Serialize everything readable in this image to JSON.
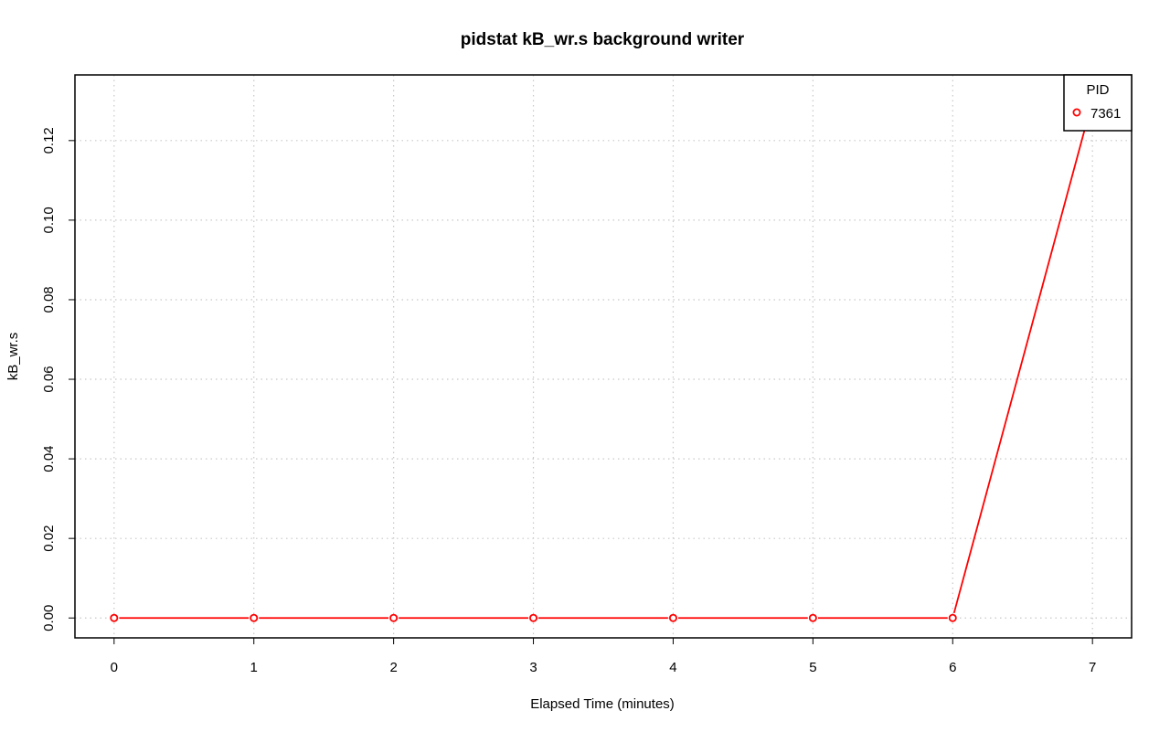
{
  "chart_data": {
    "type": "line",
    "title": "pidstat kB_wr.s background writer",
    "xlabel": "Elapsed Time (minutes)",
    "ylabel": "kB_wr.s",
    "xlim": [
      -0.28,
      7.28
    ],
    "ylim": [
      -0.005,
      0.1365
    ],
    "x_ticks": [
      0,
      1,
      2,
      3,
      4,
      5,
      6,
      7
    ],
    "y_ticks": [
      0.0,
      0.02,
      0.04,
      0.06,
      0.08,
      0.1,
      0.12
    ],
    "y_tick_labels": [
      "0.00",
      "0.02",
      "0.04",
      "0.06",
      "0.08",
      "0.10",
      "0.12"
    ],
    "grid": true,
    "legend": {
      "title": "PID",
      "position": "top-right"
    },
    "series": [
      {
        "name": "7361",
        "color": "#ff0000",
        "marker": "open-circle",
        "x": [
          0,
          1,
          2,
          3,
          4,
          5,
          6,
          7
        ],
        "y": [
          0,
          0,
          0,
          0,
          0,
          0,
          0,
          0.13
        ]
      }
    ]
  }
}
